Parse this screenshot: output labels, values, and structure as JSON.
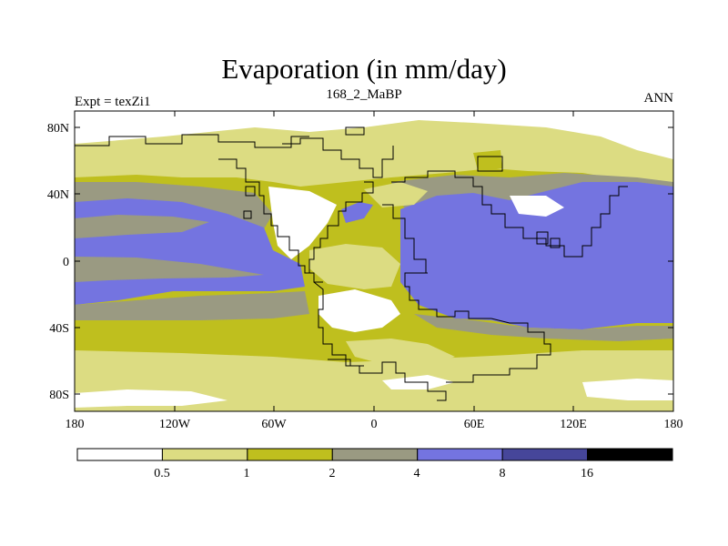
{
  "title": "Evaporation (in mm/day)",
  "left_label": "Expt = texZi1",
  "center_label": "168_2_MaBP",
  "right_label": "ANN",
  "map": {
    "lon_ticks": [
      "180",
      "120W",
      "60W",
      "0",
      "60E",
      "120E",
      "180"
    ],
    "lat_ticks": [
      "80N",
      "40N",
      "0",
      "40S",
      "80S"
    ],
    "lon_range": [
      -180,
      180
    ],
    "lat_range": [
      -90,
      90
    ]
  },
  "colorbar": {
    "boundaries": [
      "0.5",
      "1",
      "2",
      "4",
      "8",
      "16"
    ],
    "colors": [
      "#ffffff",
      "#dcdc82",
      "#bfbf1e",
      "#9a9a82",
      "#7474e0",
      "#46469a",
      "#000000"
    ]
  }
}
